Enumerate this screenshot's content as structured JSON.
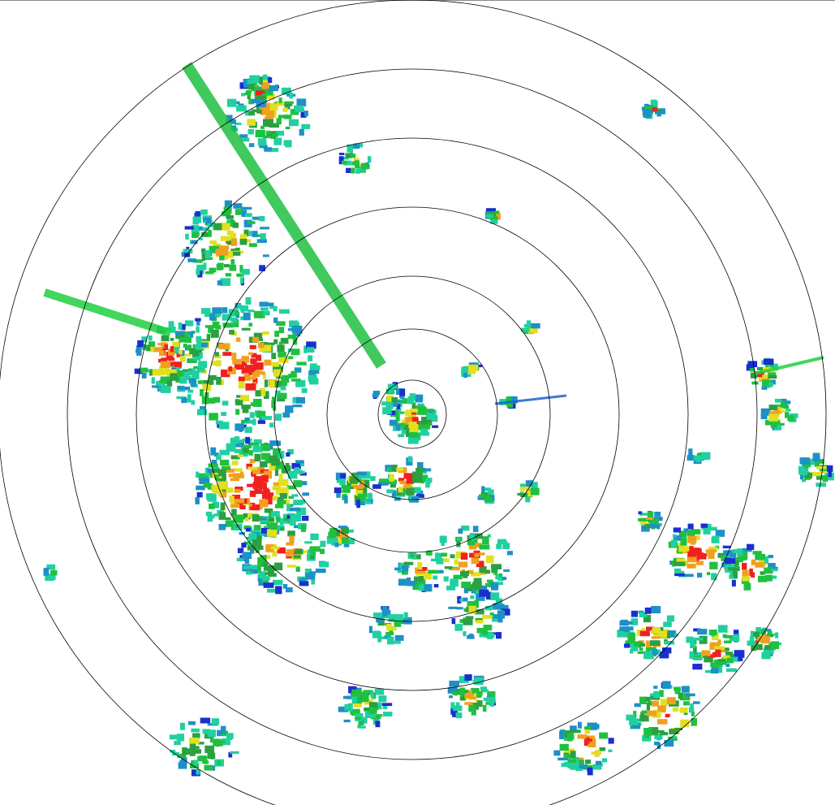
{
  "radar": {
    "palette": [
      "#1a2fd0",
      "#1e90c8",
      "#20d0a0",
      "#1fc040",
      "#2aa040",
      "#e0e020",
      "#f0a020",
      "#f02020"
    ],
    "ring_color": "#000000",
    "background": "#ffffff"
  }
}
